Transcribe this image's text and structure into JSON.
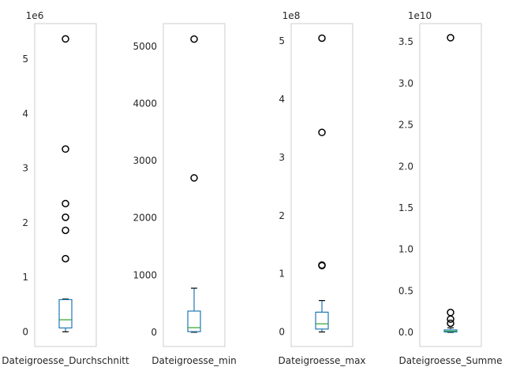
{
  "chart_data": [
    {
      "type": "box",
      "xlabel": "Dateigroesse_Durchschnitt",
      "multiplier": "1e6",
      "ylim": [
        -0.27,
        5.65
      ],
      "yticks": [
        0,
        1,
        2,
        3,
        4,
        5
      ],
      "ytick_labels": [
        "0",
        "1",
        "2",
        "3",
        "4",
        "5"
      ],
      "box": {
        "whisker_low": 0.0,
        "q1": 0.07,
        "median": 0.22,
        "q3": 0.59,
        "whisker_high": 0.6
      },
      "outliers": [
        5.37,
        3.35,
        2.35,
        2.1,
        1.86,
        1.34
      ]
    },
    {
      "type": "box",
      "xlabel": "Dateigroesse_min",
      "multiplier": "",
      "ylim": [
        -250,
        5400
      ],
      "yticks": [
        0,
        1000,
        2000,
        3000,
        4000,
        5000
      ],
      "ytick_labels": [
        "0",
        "1000",
        "2000",
        "3000",
        "4000",
        "5000"
      ],
      "box": {
        "whisker_low": 0,
        "q1": 10,
        "median": 80,
        "q3": 370,
        "whisker_high": 770
      },
      "outliers": [
        5130,
        2700
      ]
    },
    {
      "type": "box",
      "xlabel": "Dateigroesse_max",
      "multiplier": "1e8",
      "ylim": [
        -0.25,
        5.3
      ],
      "yticks": [
        0,
        1,
        2,
        3,
        4,
        5
      ],
      "ytick_labels": [
        "0",
        "1",
        "2",
        "3",
        "4",
        "5"
      ],
      "box": {
        "whisker_low": 0.0,
        "q1": 0.05,
        "median": 0.14,
        "q3": 0.34,
        "whisker_high": 0.54
      },
      "outliers": [
        5.05,
        3.43,
        1.15,
        1.14
      ]
    },
    {
      "type": "box",
      "xlabel": "Dateigroesse_Summe",
      "multiplier": "1e10",
      "ylim": [
        -0.17,
        3.72
      ],
      "yticks": [
        0.0,
        0.5,
        1.0,
        1.5,
        2.0,
        2.5,
        3.0,
        3.5
      ],
      "ytick_labels": [
        "0.0",
        "0.5",
        "1.0",
        "1.5",
        "2.0",
        "2.5",
        "3.0",
        "3.5"
      ],
      "box": {
        "whisker_low": 0.0,
        "q1": 0.005,
        "median": 0.015,
        "q3": 0.03,
        "whisker_high": 0.055
      },
      "outliers": [
        3.55,
        0.24,
        0.16,
        0.11
      ]
    }
  ],
  "colors": {
    "box": "#1f77b4",
    "median": "#2ca02c",
    "outlier_edge": "#000000",
    "frame": "#cccccc",
    "text": "#262626"
  }
}
